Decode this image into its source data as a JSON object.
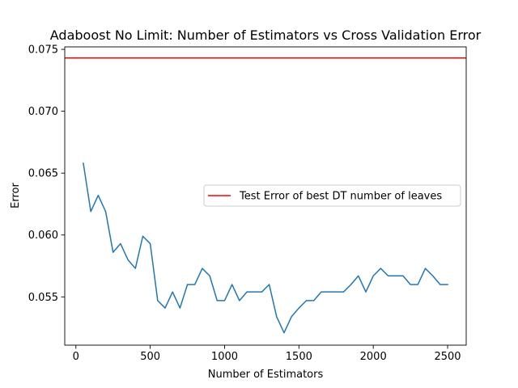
{
  "chart_data": {
    "type": "line",
    "title": "Adaboost No Limit: Number of Estimators vs Cross Validation Error",
    "xlabel": "Number of Estimators",
    "ylabel": "Error",
    "xlim": [
      -75,
      2625
    ],
    "ylim": [
      0.0511,
      0.0752
    ],
    "x_ticks": [
      0,
      500,
      1000,
      1500,
      2000,
      2500
    ],
    "x_tick_labels": [
      "0",
      "500",
      "1000",
      "1500",
      "2000",
      "2500"
    ],
    "y_ticks": [
      0.055,
      0.06,
      0.065,
      0.07,
      0.075
    ],
    "y_tick_labels": [
      "0.055",
      "0.060",
      "0.065",
      "0.070",
      "0.075"
    ],
    "grid": false,
    "legend_position": "center-right",
    "series": [
      {
        "color": "#1f77b4",
        "x": [
          50,
          100,
          150,
          200,
          250,
          300,
          350,
          400,
          450,
          500,
          550,
          600,
          650,
          700,
          750,
          800,
          850,
          900,
          950,
          1000,
          1050,
          1100,
          1150,
          1200,
          1250,
          1300,
          1350,
          1400,
          1450,
          1500,
          1550,
          1600,
          1650,
          1700,
          1750,
          1800,
          1850,
          1900,
          1950,
          2000,
          2050,
          2100,
          2150,
          2200,
          2250,
          2300,
          2350,
          2400,
          2450,
          2500
        ],
        "y": [
          0.0658,
          0.0619,
          0.0632,
          0.0619,
          0.0586,
          0.0593,
          0.058,
          0.0573,
          0.0599,
          0.0593,
          0.0547,
          0.0541,
          0.0554,
          0.0541,
          0.056,
          0.056,
          0.0573,
          0.0567,
          0.0547,
          0.0547,
          0.056,
          0.0547,
          0.0554,
          0.0554,
          0.0554,
          0.056,
          0.0534,
          0.0521,
          0.0534,
          0.0541,
          0.0547,
          0.0547,
          0.0554,
          0.0554,
          0.0554,
          0.0554,
          0.056,
          0.0567,
          0.0554,
          0.0567,
          0.0573,
          0.0567,
          0.0567,
          0.0567,
          0.056,
          0.056,
          0.0573,
          0.0567,
          0.056,
          0.056
        ]
      },
      {
        "name": "Test Error of best DT number of leaves",
        "color": "#ff0000",
        "type": "hline",
        "y": 0.0743
      }
    ]
  }
}
